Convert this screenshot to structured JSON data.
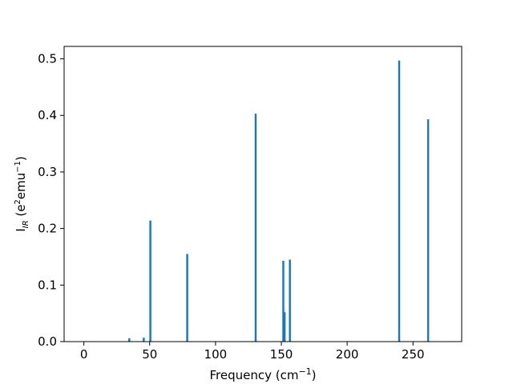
{
  "chart_data": {
    "type": "bar",
    "title": "",
    "xlabel_main": "Frequency (cm",
    "xlabel_sup": "−1",
    "xlabel_end": ")",
    "ylabel_main": "I",
    "ylabel_sub": "IR",
    "ylabel_mid1": " (e",
    "ylabel_sup1": "2",
    "ylabel_mid2": "emu",
    "ylabel_sup2": "−1",
    "ylabel_end": ")",
    "xlim": [
      -15,
      287
    ],
    "ylim": [
      0,
      0.522
    ],
    "xticks": [
      0,
      50,
      100,
      150,
      200,
      250
    ],
    "xtick_labels": [
      "0",
      "50",
      "100",
      "150",
      "200",
      "250"
    ],
    "yticks": [
      0.0,
      0.1,
      0.2,
      0.3,
      0.4,
      0.5
    ],
    "ytick_labels": [
      "0.0",
      "0.1",
      "0.2",
      "0.3",
      "0.4",
      "0.5"
    ],
    "bar_color": "#1f77b4",
    "bar_width": 1.5,
    "x": [
      34.5,
      45.5,
      50.5,
      78.5,
      130.5,
      151.5,
      152.5,
      156.5,
      239.5,
      261.5
    ],
    "values": [
      0.006,
      0.007,
      0.214,
      0.155,
      0.403,
      0.143,
      0.052,
      0.145,
      0.497,
      0.393
    ],
    "grid": false,
    "legend": "none"
  }
}
